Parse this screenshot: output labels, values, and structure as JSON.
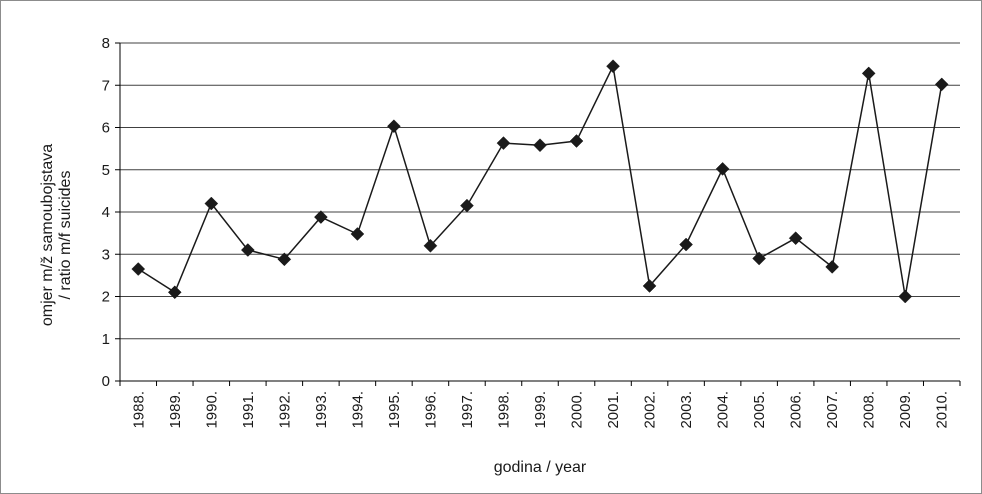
{
  "chart_data": {
    "type": "line",
    "xlabel": "godina / year",
    "ylabel_lines": [
      "omjer m/ž samoubojstava",
      "/ ratio m/f suicides"
    ],
    "ylim": [
      0,
      8
    ],
    "yticks": [
      "0",
      "1",
      "2",
      "3",
      "4",
      "5",
      "6",
      "7",
      "8"
    ],
    "grid": true,
    "legend": "none",
    "categories": [
      "1988.",
      "1989.",
      "1990.",
      "1991.",
      "1992.",
      "1993.",
      "1994.",
      "1995.",
      "1996.",
      "1997.",
      "1998.",
      "1999.",
      "2000.",
      "2001.",
      "2002.",
      "2003.",
      "2004.",
      "2005.",
      "2006.",
      "2007.",
      "2008.",
      "2009.",
      "2010."
    ],
    "values": [
      2.65,
      2.1,
      4.2,
      3.1,
      2.88,
      3.88,
      3.48,
      6.03,
      3.2,
      4.15,
      5.63,
      5.58,
      5.68,
      7.45,
      2.25,
      3.23,
      5.02,
      2.9,
      3.38,
      2.7,
      7.28,
      2.0,
      7.02
    ],
    "colors": {
      "line": "#1a1a1a",
      "marker": "#1a1a1a",
      "grid": "#404040"
    },
    "marker": "diamond"
  }
}
